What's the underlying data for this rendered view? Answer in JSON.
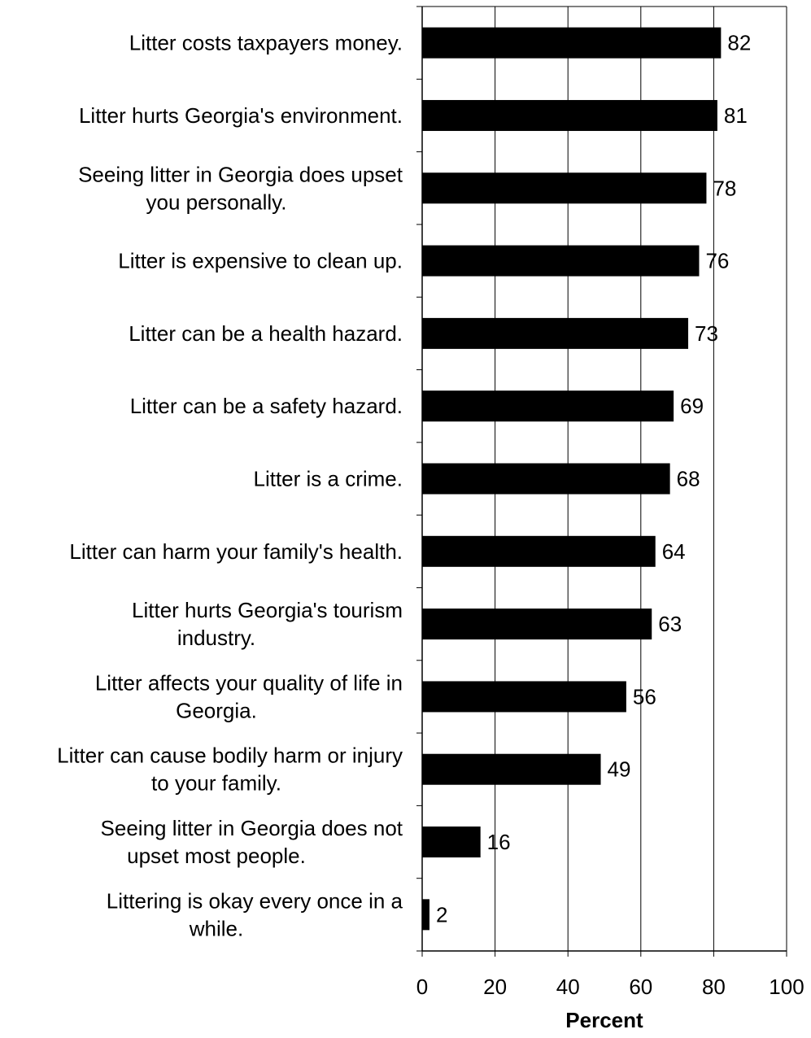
{
  "chart_data": {
    "type": "bar",
    "orientation": "horizontal",
    "categories": [
      [
        "Litter costs taxpayers money."
      ],
      [
        "Litter hurts Georgia's environment."
      ],
      [
        "Seeing litter in Georgia does upset",
        "you personally."
      ],
      [
        "Litter is expensive to clean up."
      ],
      [
        "Litter can be a health hazard."
      ],
      [
        "Litter can be a safety hazard."
      ],
      [
        "Litter is a crime."
      ],
      [
        "Litter can harm your family's health."
      ],
      [
        "Litter hurts Georgia's tourism",
        "industry."
      ],
      [
        "Litter affects your quality of life in",
        "Georgia."
      ],
      [
        "Litter can cause bodily harm or injury",
        "to your family."
      ],
      [
        "Seeing litter in Georgia does not",
        "upset most people."
      ],
      [
        "Littering is okay every once in a",
        "while."
      ]
    ],
    "values": [
      82,
      81,
      78,
      76,
      73,
      69,
      68,
      64,
      63,
      56,
      49,
      16,
      2
    ],
    "data_labels": [
      "82",
      "81",
      "78",
      "76",
      "73",
      "69",
      "68",
      "64",
      "63",
      "56",
      "49",
      "16",
      "2"
    ],
    "xlabel": "Percent",
    "xlim": [
      0,
      100
    ],
    "xticks": [
      "0",
      "20",
      "40",
      "60",
      "80",
      "100"
    ],
    "grid": "vertical",
    "bar_color": "#000000"
  }
}
